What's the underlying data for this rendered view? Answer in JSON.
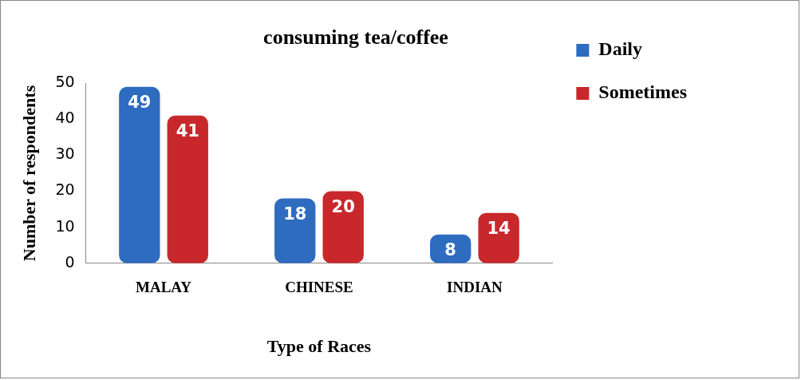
{
  "chart_data": {
    "type": "bar",
    "title": "consuming tea/coffee",
    "xlabel": "Type of Races",
    "ylabel": "Number of respondents",
    "categories": [
      "MALAY",
      "CHINESE",
      "INDIAN"
    ],
    "series": [
      {
        "name": "Daily",
        "color": "#2e6cc0",
        "values": [
          49,
          18,
          8
        ]
      },
      {
        "name": "Sometimes",
        "color": "#c8282c",
        "values": [
          41,
          20,
          14
        ]
      }
    ],
    "ylim": [
      0,
      50
    ],
    "yticks": [
      0,
      10,
      20,
      30,
      40,
      50
    ],
    "grid": false,
    "legend": "top right",
    "data_labels": true
  }
}
